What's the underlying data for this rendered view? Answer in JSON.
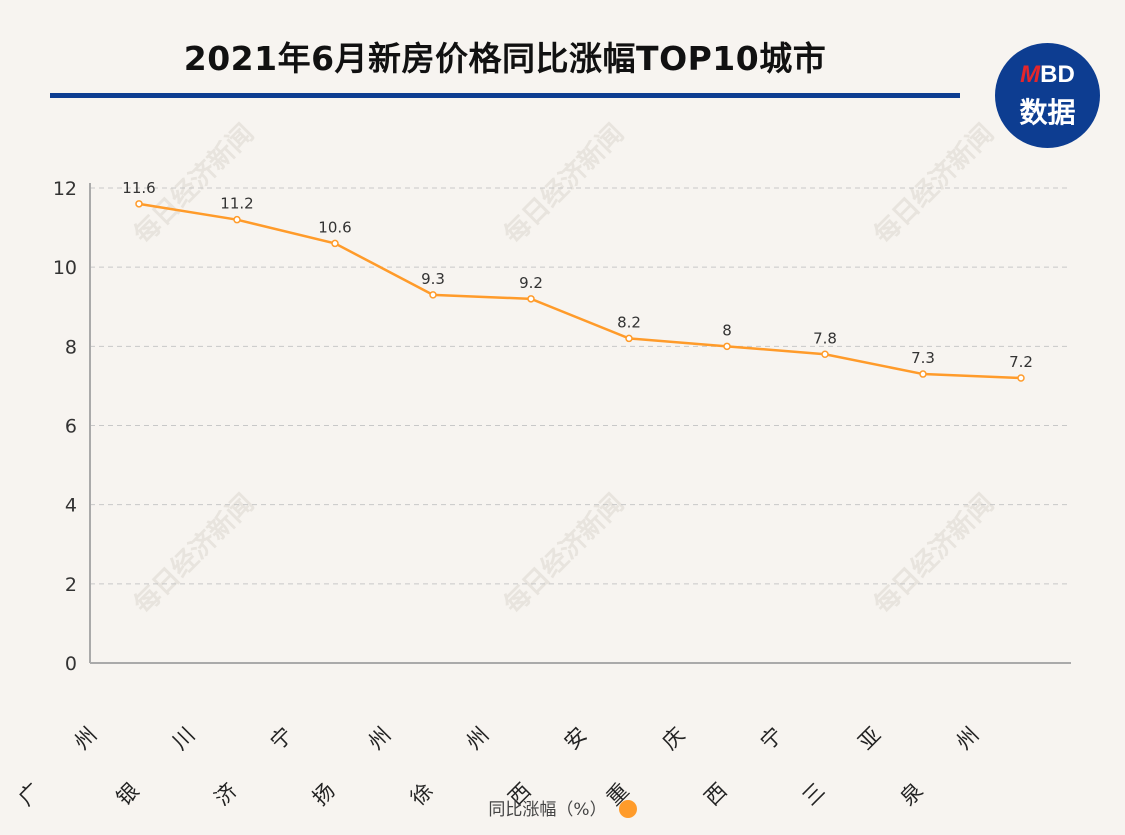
{
  "title": "2021年6月新房价格同比涨幅TOP10城市",
  "logo": {
    "brand_prefix": "M",
    "brand_suffix": "BD",
    "subtitle": "数据"
  },
  "watermark": "每日经济新闻",
  "colors": {
    "line": "#ff9b2a",
    "title_rule": "#0d3d91",
    "logo_bg": "#0d3d91",
    "grid": "#cccccc"
  },
  "chart_data": {
    "type": "line",
    "categories": [
      "广州",
      "银川",
      "济宁",
      "扬州",
      "徐州",
      "西安",
      "重庆",
      "西宁",
      "三亚",
      "泉州"
    ],
    "series": [
      {
        "name": "同比涨幅（%）",
        "values": [
          11.6,
          11.2,
          10.6,
          9.3,
          9.2,
          8.2,
          8,
          7.8,
          7.3,
          7.2
        ]
      }
    ],
    "data_labels": [
      "11.6",
      "11.2",
      "10.6",
      "9.3",
      "9.2",
      "8.2",
      "8",
      "7.8",
      "7.3",
      "7.2"
    ],
    "ylim": [
      0,
      12
    ],
    "yticks": [
      "0",
      "2",
      "4",
      "6",
      "8",
      "10",
      "12"
    ],
    "grid": true,
    "legend": "bottom",
    "xlabel": "",
    "ylabel": ""
  }
}
